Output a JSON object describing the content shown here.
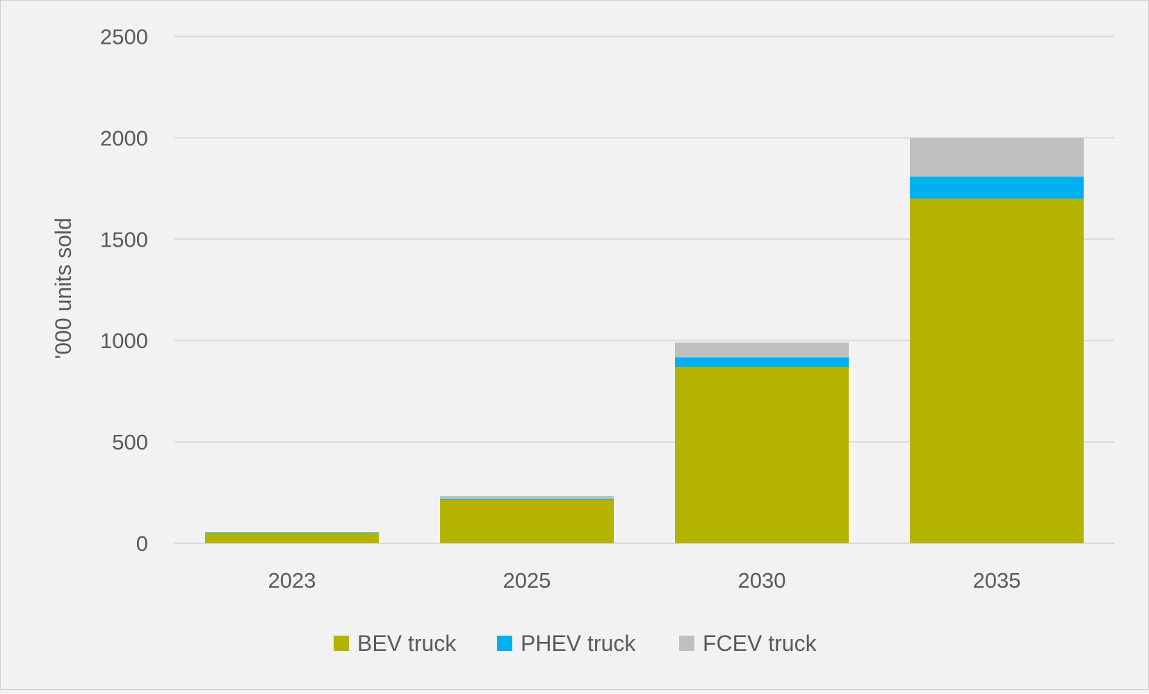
{
  "chart_data": {
    "type": "bar",
    "stacked": true,
    "categories": [
      "2023",
      "2025",
      "2030",
      "2035"
    ],
    "series": [
      {
        "name": "BEV truck",
        "color": "#b3b300",
        "values": [
          50,
          215,
          870,
          1700
        ]
      },
      {
        "name": "PHEV truck",
        "color": "#00b0f0",
        "values": [
          3,
          5,
          47,
          108
        ]
      },
      {
        "name": "FCEV truck",
        "color": "#bfbfbf",
        "values": [
          2,
          13,
          73,
          190
        ]
      }
    ],
    "title": "",
    "xlabel": "",
    "ylabel": "'000 units sold",
    "ylim": [
      0,
      2500
    ],
    "yticks": [
      "0",
      "500",
      "1000",
      "1500",
      "2000",
      "2500"
    ],
    "grid": true,
    "legend": "bottom"
  }
}
